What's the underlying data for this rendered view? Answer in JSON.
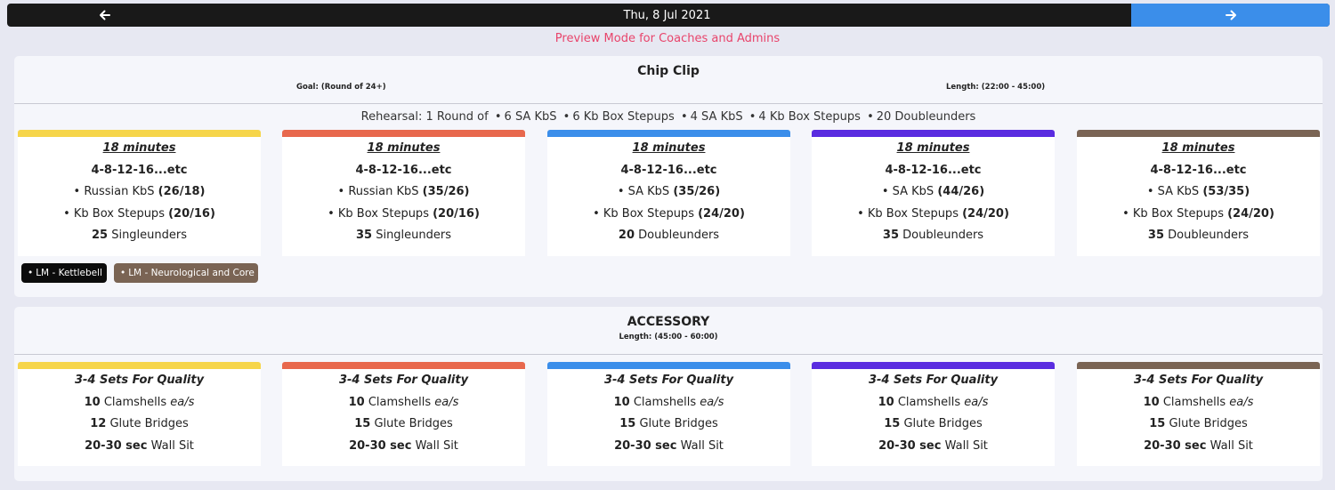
{
  "nav": {
    "date": "Thu, 8 Jul 2021",
    "prev_icon": "arrow-left-icon",
    "next_icon": "arrow-right-icon",
    "next_color": "#3b8eea"
  },
  "preview_text": "Preview Mode for Coaches and Admins",
  "section1": {
    "title": "Chip Clip",
    "goal": "Goal: (Round of 24+)",
    "length": "Length: (22:00 - 45:00)",
    "rehearsal": {
      "prefix": "Rehearsal: 1 Round of",
      "items": [
        {
          "num": "6",
          "name": "SA KbS"
        },
        {
          "num": "6",
          "name": "Kb Box Stepups"
        },
        {
          "num": "4",
          "name": "SA KbS"
        },
        {
          "num": "4",
          "name": "Kb Box Stepups"
        },
        {
          "num": "20",
          "name": "Doubleunders"
        }
      ]
    },
    "cards": [
      {
        "color": "#f6d54a",
        "title": "18 minutes",
        "scheme": "4-8-12-16...etc",
        "m1": "Russian KbS",
        "m1w": "(26/18)",
        "m2": "Kb Box Stepups",
        "m2w": "(20/16)",
        "m3n": "25",
        "m3": "Singleunders"
      },
      {
        "color": "#e8684d",
        "title": "18 minutes",
        "scheme": "4-8-12-16...etc",
        "m1": "Russian KbS",
        "m1w": "(35/26)",
        "m2": "Kb Box Stepups",
        "m2w": "(20/16)",
        "m3n": "35",
        "m3": "Singleunders"
      },
      {
        "color": "#3b8eea",
        "title": "18 minutes",
        "scheme": "4-8-12-16...etc",
        "m1": "SA KbS",
        "m1w": "(35/26)",
        "m2": "Kb Box Stepups",
        "m2w": "(24/20)",
        "m3n": "20",
        "m3": "Doubleunders"
      },
      {
        "color": "#5a2ce0",
        "title": "18 minutes",
        "scheme": "4-8-12-16...etc",
        "m1": "SA KbS",
        "m1w": "(44/26)",
        "m2": "Kb Box Stepups",
        "m2w": "(24/20)",
        "m3n": "35",
        "m3": "Doubleunders"
      },
      {
        "color": "#7a6454",
        "title": "18 minutes",
        "scheme": "4-8-12-16...etc",
        "m1": "SA KbS",
        "m1w": "(53/35)",
        "m2": "Kb Box Stepups",
        "m2w": "(24/20)",
        "m3n": "35",
        "m3": "Doubleunders"
      }
    ],
    "tags": [
      {
        "label": "LM - Kettlebell",
        "color": "#0c0c0c"
      },
      {
        "label": "LM - Neurological and Core",
        "color": "#7a6454"
      }
    ]
  },
  "section2": {
    "title": "ACCESSORY",
    "length": "Length: (45:00 - 60:00)",
    "cards": [
      {
        "color": "#f6d54a",
        "title": "3-4 Sets For Quality",
        "c1n": "10",
        "c1": "Clamshells",
        "c1s": "ea/s",
        "c2n": "12",
        "c2": "Glute Bridges",
        "c3n": "20-30 sec",
        "c3": "Wall Sit"
      },
      {
        "color": "#e8684d",
        "title": "3-4 Sets For Quality",
        "c1n": "10",
        "c1": "Clamshells",
        "c1s": "ea/s",
        "c2n": "15",
        "c2": "Glute Bridges",
        "c3n": "20-30 sec",
        "c3": "Wall Sit"
      },
      {
        "color": "#3b8eea",
        "title": "3-4 Sets For Quality",
        "c1n": "10",
        "c1": "Clamshells",
        "c1s": "ea/s",
        "c2n": "15",
        "c2": "Glute Bridges",
        "c3n": "20-30 sec",
        "c3": "Wall Sit"
      },
      {
        "color": "#5a2ce0",
        "title": "3-4 Sets For Quality",
        "c1n": "10",
        "c1": "Clamshells",
        "c1s": "ea/s",
        "c2n": "15",
        "c2": "Glute Bridges",
        "c3n": "20-30 sec",
        "c3": "Wall Sit"
      },
      {
        "color": "#7a6454",
        "title": "3-4 Sets For Quality",
        "c1n": "10",
        "c1": "Clamshells",
        "c1s": "ea/s",
        "c2n": "15",
        "c2": "Glute Bridges",
        "c3n": "20-30 sec",
        "c3": "Wall Sit"
      }
    ]
  }
}
